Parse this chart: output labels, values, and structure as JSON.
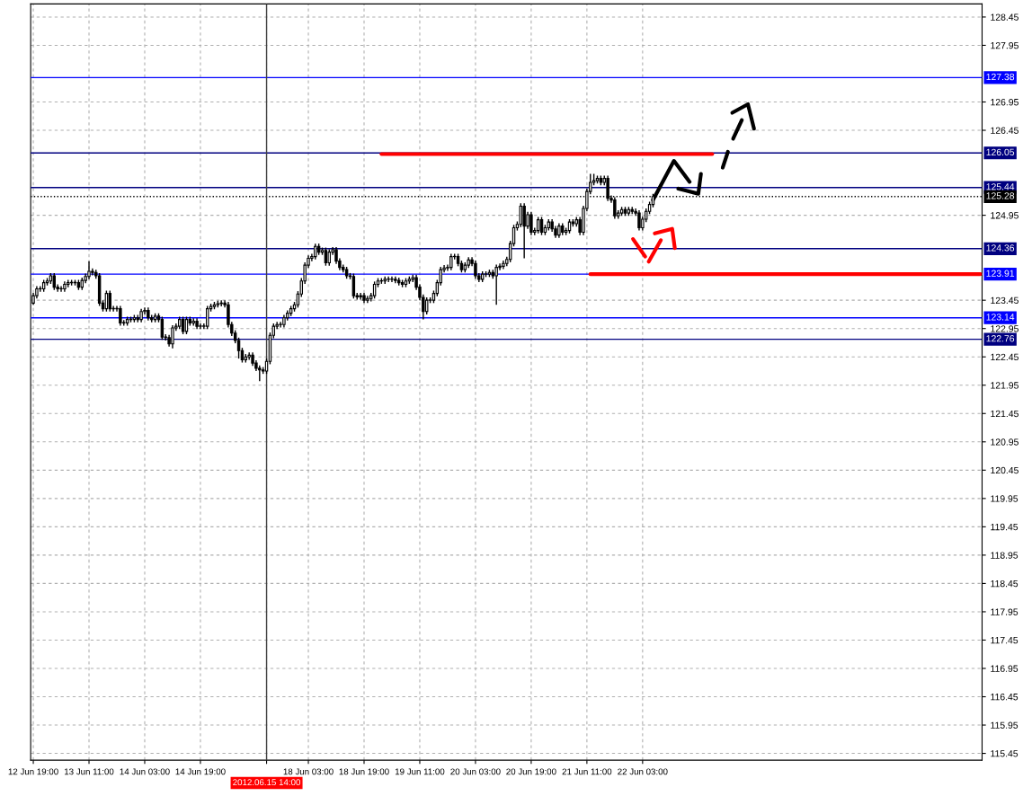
{
  "chart_data": {
    "type": "candlestick",
    "categories": [
      "12 Jun 19:00",
      null,
      null,
      null,
      null,
      null,
      null,
      null,
      null,
      null,
      null,
      null,
      null,
      null,
      null,
      null,
      "13 Jun 11:00",
      null,
      null,
      null,
      null,
      null,
      null,
      null,
      null,
      null,
      null,
      null,
      null,
      null,
      null,
      null,
      "14 Jun 03:00",
      null,
      null,
      null,
      null,
      null,
      null,
      null,
      null,
      null,
      null,
      null,
      null,
      null,
      null,
      null,
      "14 Jun 19:00",
      null,
      null,
      null,
      null,
      null,
      null,
      null,
      null,
      null,
      null,
      null,
      null,
      null,
      null,
      null,
      null,
      null,
      null,
      "2012.06.15 14:00",
      null,
      null,
      null,
      null,
      null,
      null,
      null,
      null,
      null,
      null,
      null,
      "18 Jun 03:00",
      null,
      null,
      null,
      null,
      null,
      null,
      null,
      null,
      null,
      null,
      null,
      null,
      null,
      null,
      null,
      "18 Jun 19:00",
      null,
      null,
      null,
      null,
      null,
      null,
      null,
      null,
      null,
      null,
      null,
      null,
      null,
      null,
      null,
      "19 Jun 11:00",
      null,
      null,
      null,
      null,
      null,
      null,
      null,
      null,
      null,
      null,
      null,
      null,
      null,
      null,
      null,
      "20 Jun 03:00",
      null,
      null,
      null,
      null,
      null,
      null,
      null,
      null,
      null,
      null,
      null,
      null,
      null,
      null,
      null,
      "20 Jun 19:00",
      null,
      null,
      null,
      null,
      null,
      null,
      null,
      null,
      null,
      null,
      null,
      null,
      null,
      null,
      null,
      "21 Jun 11:00",
      null,
      null,
      null,
      null,
      null,
      null,
      null,
      null,
      null,
      null,
      null,
      null,
      null,
      null,
      null,
      "22 Jun 03:00",
      null,
      null,
      null,
      null,
      null,
      null,
      null,
      null,
      null,
      null,
      null,
      null,
      null,
      null,
      null,
      null,
      null,
      null,
      null,
      null,
      null,
      null,
      null,
      null,
      null,
      null,
      null,
      null,
      null,
      null,
      null,
      null,
      null,
      null,
      null,
      null,
      null,
      null,
      null,
      null,
      null,
      null,
      null,
      null,
      null,
      null,
      null,
      null,
      null,
      null,
      null,
      null,
      null,
      null,
      null,
      null,
      null,
      null,
      null,
      null,
      null,
      null,
      null,
      null,
      null,
      null,
      null,
      null,
      null,
      null,
      null,
      null,
      null,
      null,
      null,
      null,
      null,
      null,
      null,
      null,
      null,
      null,
      null,
      null,
      null,
      null,
      null,
      null,
      null,
      null,
      null,
      null,
      null,
      null,
      null,
      null,
      null
    ],
    "ohlc": [
      [
        123.4,
        123.58,
        123.37,
        123.53
      ],
      [
        123.53,
        123.7,
        123.48,
        123.65
      ],
      [
        123.65,
        123.7,
        123.6,
        123.65
      ],
      [
        123.65,
        123.81,
        123.6,
        123.76
      ],
      [
        123.76,
        123.84,
        123.71,
        123.79
      ],
      [
        123.79,
        123.93,
        123.74,
        123.88
      ],
      [
        123.88,
        123.93,
        123.63,
        123.68
      ],
      [
        123.68,
        123.73,
        123.6,
        123.65
      ],
      [
        123.65,
        123.7,
        123.6,
        123.65
      ],
      [
        123.65,
        123.78,
        123.6,
        123.73
      ],
      [
        123.73,
        123.81,
        123.68,
        123.76
      ],
      [
        123.76,
        123.81,
        123.71,
        123.76
      ],
      [
        123.76,
        123.81,
        123.71,
        123.76
      ],
      [
        123.76,
        123.81,
        123.63,
        123.68
      ],
      [
        123.68,
        123.85,
        123.63,
        123.8
      ],
      [
        123.8,
        123.92,
        123.75,
        123.87
      ],
      [
        123.87,
        124.14,
        123.82,
        123.96
      ],
      [
        123.96,
        124.01,
        123.89,
        123.94
      ],
      [
        123.94,
        123.99,
        123.83,
        123.88
      ],
      [
        123.88,
        123.93,
        123.35,
        123.4
      ],
      [
        123.4,
        123.45,
        123.25,
        123.3
      ],
      [
        123.3,
        123.62,
        123.25,
        123.57
      ],
      [
        123.57,
        123.62,
        123.25,
        123.3
      ],
      [
        123.3,
        123.35,
        123.25,
        123.3
      ],
      [
        123.3,
        123.35,
        123.25,
        123.3
      ],
      [
        123.3,
        123.35,
        123.0,
        123.05
      ],
      [
        123.05,
        123.1,
        123.0,
        123.05
      ],
      [
        123.05,
        123.16,
        123.0,
        123.11
      ],
      [
        123.11,
        123.16,
        123.06,
        123.11
      ],
      [
        123.11,
        123.19,
        123.06,
        123.14
      ],
      [
        123.14,
        123.19,
        123.06,
        123.11
      ],
      [
        123.11,
        123.3,
        123.06,
        123.25
      ],
      [
        123.25,
        123.32,
        123.2,
        123.27
      ],
      [
        123.27,
        123.32,
        123.09,
        123.14
      ],
      [
        123.14,
        123.19,
        123.06,
        123.11
      ],
      [
        123.11,
        123.22,
        123.06,
        123.17
      ],
      [
        123.17,
        123.22,
        123.06,
        123.11
      ],
      [
        123.11,
        123.16,
        122.75,
        122.8
      ],
      [
        122.8,
        122.85,
        122.74,
        122.79
      ],
      [
        122.79,
        122.84,
        122.63,
        122.68
      ],
      [
        122.68,
        123.01,
        122.6,
        122.96
      ],
      [
        122.96,
        123.04,
        122.91,
        122.99
      ],
      [
        122.99,
        123.16,
        122.94,
        123.11
      ],
      [
        123.11,
        123.16,
        122.85,
        122.9
      ],
      [
        122.9,
        123.16,
        122.85,
        123.11
      ],
      [
        123.11,
        123.16,
        123.0,
        123.05
      ],
      [
        123.05,
        123.13,
        123.0,
        123.08
      ],
      [
        123.08,
        123.13,
        122.94,
        122.99
      ],
      [
        122.99,
        123.04,
        122.94,
        122.99
      ],
      [
        122.99,
        123.04,
        122.94,
        122.99
      ],
      [
        122.99,
        123.35,
        122.94,
        123.3
      ],
      [
        123.3,
        123.39,
        123.25,
        123.34
      ],
      [
        123.34,
        123.42,
        123.29,
        123.37
      ],
      [
        123.37,
        123.44,
        123.32,
        123.39
      ],
      [
        123.39,
        123.45,
        123.34,
        123.4
      ],
      [
        123.4,
        123.45,
        123.32,
        123.37
      ],
      [
        123.37,
        123.42,
        122.97,
        123.02
      ],
      [
        123.02,
        123.07,
        122.82,
        122.87
      ],
      [
        122.87,
        122.92,
        122.69,
        122.74
      ],
      [
        122.74,
        122.79,
        122.42,
        122.56
      ],
      [
        122.56,
        122.61,
        122.35,
        122.4
      ],
      [
        122.4,
        122.5,
        122.35,
        122.45
      ],
      [
        122.45,
        122.53,
        122.4,
        122.48
      ],
      [
        122.48,
        122.53,
        122.29,
        122.34
      ],
      [
        122.34,
        122.39,
        122.2,
        122.25
      ],
      [
        122.25,
        122.3,
        122.02,
        122.22
      ],
      [
        122.22,
        122.27,
        122.15,
        122.2
      ],
      [
        122.2,
        122.42,
        122.15,
        122.37
      ],
      [
        122.37,
        122.88,
        122.32,
        122.83
      ],
      [
        122.83,
        123.04,
        122.78,
        122.99
      ],
      [
        122.99,
        123.07,
        122.94,
        123.02
      ],
      [
        123.02,
        123.07,
        122.97,
        123.02
      ],
      [
        123.02,
        123.19,
        122.97,
        123.14
      ],
      [
        123.14,
        123.27,
        123.09,
        123.22
      ],
      [
        123.22,
        123.35,
        123.17,
        123.3
      ],
      [
        123.3,
        123.42,
        123.25,
        123.37
      ],
      [
        123.37,
        123.61,
        123.32,
        123.56
      ],
      [
        123.56,
        123.84,
        123.51,
        123.79
      ],
      [
        123.79,
        124.12,
        123.74,
        124.07
      ],
      [
        124.07,
        124.24,
        124.02,
        124.19
      ],
      [
        124.19,
        124.27,
        124.14,
        124.22
      ],
      [
        124.22,
        124.45,
        124.17,
        124.4
      ],
      [
        124.4,
        124.45,
        124.25,
        124.3
      ],
      [
        124.3,
        124.38,
        124.25,
        124.33
      ],
      [
        124.33,
        124.38,
        124.06,
        124.11
      ],
      [
        124.11,
        124.35,
        124.06,
        124.3
      ],
      [
        124.3,
        124.39,
        124.25,
        124.34
      ],
      [
        124.34,
        124.39,
        124.09,
        124.14
      ],
      [
        124.14,
        124.19,
        123.98,
        124.03
      ],
      [
        124.03,
        124.08,
        123.94,
        123.99
      ],
      [
        123.99,
        124.04,
        123.83,
        123.88
      ],
      [
        123.88,
        123.93,
        123.82,
        123.87
      ],
      [
        123.87,
        123.92,
        123.48,
        123.53
      ],
      [
        123.53,
        123.58,
        123.46,
        123.51
      ],
      [
        123.51,
        123.58,
        123.46,
        123.53
      ],
      [
        123.53,
        123.58,
        123.4,
        123.45
      ],
      [
        123.45,
        123.53,
        123.4,
        123.48
      ],
      [
        123.48,
        123.58,
        123.43,
        123.53
      ],
      [
        123.53,
        123.78,
        123.48,
        123.73
      ],
      [
        123.73,
        123.84,
        123.68,
        123.79
      ],
      [
        123.79,
        123.84,
        123.74,
        123.79
      ],
      [
        123.79,
        123.87,
        123.74,
        123.82
      ],
      [
        123.82,
        123.87,
        123.77,
        123.82
      ],
      [
        123.82,
        123.87,
        123.77,
        123.82
      ],
      [
        123.82,
        123.87,
        123.75,
        123.8
      ],
      [
        123.8,
        123.85,
        123.71,
        123.76
      ],
      [
        123.76,
        123.81,
        123.68,
        123.73
      ],
      [
        123.73,
        123.84,
        123.68,
        123.79
      ],
      [
        123.79,
        123.87,
        123.74,
        123.82
      ],
      [
        123.82,
        123.9,
        123.77,
        123.85
      ],
      [
        123.85,
        123.9,
        123.63,
        123.68
      ],
      [
        123.68,
        123.73,
        123.45,
        123.5
      ],
      [
        123.5,
        123.55,
        123.11,
        123.25
      ],
      [
        123.25,
        123.5,
        123.2,
        123.45
      ],
      [
        123.45,
        123.5,
        123.4,
        123.45
      ],
      [
        123.45,
        123.62,
        123.4,
        123.57
      ],
      [
        123.57,
        123.81,
        123.52,
        123.76
      ],
      [
        123.76,
        124.04,
        123.71,
        123.99
      ],
      [
        123.99,
        124.07,
        123.94,
        124.02
      ],
      [
        124.02,
        124.08,
        123.97,
        124.03
      ],
      [
        124.03,
        124.27,
        123.98,
        124.22
      ],
      [
        124.22,
        124.27,
        124.17,
        124.22
      ],
      [
        124.22,
        124.27,
        124.05,
        124.1
      ],
      [
        124.1,
        124.15,
        123.94,
        123.99
      ],
      [
        123.99,
        124.12,
        123.94,
        124.07
      ],
      [
        124.07,
        124.21,
        124.02,
        124.16
      ],
      [
        124.16,
        124.21,
        124.05,
        124.1
      ],
      [
        124.1,
        124.15,
        123.83,
        123.88
      ],
      [
        123.88,
        123.93,
        123.77,
        123.82
      ],
      [
        123.82,
        123.96,
        123.77,
        123.91
      ],
      [
        123.91,
        123.96,
        123.86,
        123.91
      ],
      [
        123.91,
        123.99,
        123.86,
        123.94
      ],
      [
        123.94,
        123.99,
        123.83,
        123.88
      ],
      [
        123.88,
        124.08,
        123.37,
        124.03
      ],
      [
        124.03,
        124.1,
        123.98,
        124.05
      ],
      [
        124.05,
        124.15,
        124.0,
        124.1
      ],
      [
        124.1,
        124.22,
        124.05,
        124.17
      ],
      [
        124.17,
        124.5,
        124.12,
        124.45
      ],
      [
        124.45,
        124.78,
        124.4,
        124.73
      ],
      [
        124.73,
        124.84,
        124.68,
        124.79
      ],
      [
        124.79,
        125.16,
        124.74,
        125.11
      ],
      [
        125.11,
        125.16,
        124.19,
        124.76
      ],
      [
        124.76,
        125.01,
        124.71,
        124.96
      ],
      [
        124.96,
        125.01,
        124.6,
        124.65
      ],
      [
        124.65,
        124.73,
        124.6,
        124.68
      ],
      [
        124.68,
        124.92,
        124.63,
        124.87
      ],
      [
        124.87,
        124.92,
        124.6,
        124.65
      ],
      [
        124.65,
        124.78,
        124.6,
        124.73
      ],
      [
        124.73,
        124.88,
        124.68,
        124.83
      ],
      [
        124.83,
        124.88,
        124.66,
        124.71
      ],
      [
        124.71,
        124.76,
        124.55,
        124.6
      ],
      [
        124.6,
        124.81,
        124.55,
        124.76
      ],
      [
        124.76,
        124.81,
        124.6,
        124.65
      ],
      [
        124.65,
        124.73,
        124.6,
        124.68
      ],
      [
        124.68,
        124.88,
        124.63,
        124.83
      ],
      [
        124.83,
        124.88,
        124.75,
        124.8
      ],
      [
        124.8,
        124.92,
        124.75,
        124.87
      ],
      [
        124.87,
        124.92,
        124.6,
        124.65
      ],
      [
        124.65,
        125.12,
        124.6,
        125.07
      ],
      [
        125.07,
        125.42,
        125.02,
        125.37
      ],
      [
        125.37,
        125.68,
        125.32,
        125.53
      ],
      [
        125.53,
        125.68,
        125.48,
        125.56
      ],
      [
        125.56,
        125.65,
        125.51,
        125.6
      ],
      [
        125.6,
        125.65,
        125.48,
        125.53
      ],
      [
        125.53,
        125.65,
        125.48,
        125.6
      ],
      [
        125.6,
        125.65,
        125.2,
        125.25
      ],
      [
        125.25,
        125.3,
        125.17,
        125.22
      ],
      [
        125.22,
        125.27,
        124.89,
        124.94
      ],
      [
        124.94,
        125.04,
        124.89,
        124.99
      ],
      [
        124.99,
        125.1,
        124.94,
        125.05
      ],
      [
        125.05,
        125.1,
        124.94,
        124.99
      ],
      [
        124.99,
        125.1,
        124.94,
        125.05
      ],
      [
        125.05,
        125.1,
        124.97,
        125.02
      ],
      [
        125.02,
        125.07,
        124.94,
        124.99
      ],
      [
        124.99,
        125.04,
        124.68,
        124.73
      ],
      [
        124.73,
        124.93,
        124.68,
        124.88
      ],
      [
        124.88,
        125.07,
        124.83,
        125.02
      ],
      [
        125.02,
        125.19,
        124.97,
        125.14
      ],
      [
        125.14,
        125.33,
        125.09,
        125.28
      ],
      null,
      null,
      null,
      null,
      null,
      null,
      null,
      null,
      null,
      null,
      null,
      null,
      null,
      null,
      null,
      null,
      null,
      null,
      null,
      null,
      null,
      null,
      null,
      null,
      null,
      null,
      null,
      null,
      null,
      null,
      null,
      null,
      null,
      null,
      null,
      null,
      null,
      null,
      null,
      null,
      null,
      null,
      null,
      null,
      null,
      null,
      null,
      null,
      null,
      null,
      null,
      null,
      null,
      null,
      null,
      null,
      null,
      null,
      null,
      null,
      null,
      null,
      null,
      null,
      null,
      null,
      null,
      null,
      null,
      null,
      null,
      null,
      null,
      null,
      null,
      null,
      null,
      null,
      null,
      null,
      null,
      null,
      null,
      null,
      null,
      null,
      null,
      null,
      null,
      null,
      null,
      null,
      null,
      null
    ],
    "series": [
      {
        "type": "line",
        "color": "#ff0000",
        "values": [
          null,
          null,
          null,
          null,
          null,
          null,
          null,
          null,
          null,
          null,
          null,
          null,
          null,
          null,
          null,
          null,
          null,
          null,
          null,
          null,
          null,
          null,
          null,
          null,
          null,
          null,
          null,
          null,
          null,
          null,
          null,
          null,
          null,
          null,
          null,
          null,
          null,
          null,
          null,
          null,
          null,
          null,
          null,
          null,
          null,
          null,
          null,
          null,
          null,
          null,
          null,
          null,
          null,
          null,
          null,
          null,
          null,
          null,
          null,
          null,
          null,
          null,
          null,
          null,
          null,
          null,
          null,
          null,
          null,
          null,
          null,
          null,
          null,
          null,
          null,
          null,
          null,
          null,
          null,
          null,
          null,
          null,
          null,
          null,
          null,
          null,
          null,
          null,
          null,
          null,
          null,
          null,
          null,
          null,
          null,
          null,
          null,
          null,
          null,
          null,
          126.03,
          null,
          null,
          null,
          null,
          null,
          null,
          null,
          null,
          null,
          null,
          null,
          null,
          null,
          null,
          null,
          null,
          null,
          null,
          null,
          null,
          null,
          null,
          null,
          null,
          null,
          null,
          null,
          null,
          null,
          null,
          null,
          null,
          null,
          null,
          null,
          null,
          null,
          null,
          null,
          null,
          null,
          null,
          null,
          null,
          null,
          null,
          null,
          null,
          null,
          null,
          null,
          null,
          null,
          null,
          null,
          null,
          null,
          null,
          null,
          null,
          null,
          null,
          null,
          null,
          null,
          null,
          null,
          null,
          null,
          null,
          null,
          null,
          null,
          null,
          null,
          null,
          null,
          null,
          null,
          null,
          null,
          null,
          null,
          null,
          null,
          null,
          null,
          null,
          null,
          null,
          null,
          null,
          null,
          null,
          126.03,
          null,
          null,
          null,
          null,
          null,
          null,
          null,
          null,
          null,
          null,
          null,
          null,
          null,
          null,
          null,
          null,
          null,
          null,
          null,
          null,
          null,
          null,
          null,
          null,
          null,
          null,
          null,
          null,
          null,
          null,
          null,
          null,
          null,
          null,
          null,
          null,
          null,
          null,
          null,
          null,
          null,
          null,
          null,
          null,
          null,
          null,
          null,
          null,
          null,
          null,
          null,
          null,
          null,
          null,
          null,
          null,
          null,
          null,
          null,
          null,
          null,
          null,
          null,
          null,
          null,
          null,
          null,
          null,
          null,
          null,
          null,
          null,
          null,
          null,
          null,
          null,
          null
        ]
      },
      {
        "type": "line",
        "color": "#ff0000",
        "values": [
          null,
          null,
          null,
          null,
          null,
          null,
          null,
          null,
          null,
          null,
          null,
          null,
          null,
          null,
          null,
          null,
          null,
          null,
          null,
          null,
          null,
          null,
          null,
          null,
          null,
          null,
          null,
          null,
          null,
          null,
          null,
          null,
          null,
          null,
          null,
          null,
          null,
          null,
          null,
          null,
          null,
          null,
          null,
          null,
          null,
          null,
          null,
          null,
          null,
          null,
          null,
          null,
          null,
          null,
          null,
          null,
          null,
          null,
          null,
          null,
          null,
          null,
          null,
          null,
          null,
          null,
          null,
          null,
          null,
          null,
          null,
          null,
          null,
          null,
          null,
          null,
          null,
          null,
          null,
          null,
          null,
          null,
          null,
          null,
          null,
          null,
          null,
          null,
          null,
          null,
          null,
          null,
          null,
          null,
          null,
          null,
          null,
          null,
          null,
          null,
          null,
          null,
          null,
          null,
          null,
          null,
          null,
          null,
          null,
          null,
          null,
          null,
          null,
          null,
          null,
          null,
          null,
          null,
          null,
          null,
          null,
          null,
          null,
          null,
          null,
          null,
          null,
          null,
          null,
          null,
          null,
          null,
          null,
          null,
          null,
          null,
          null,
          null,
          null,
          null,
          null,
          null,
          null,
          null,
          null,
          null,
          null,
          null,
          null,
          null,
          null,
          null,
          null,
          null,
          null,
          null,
          null,
          null,
          null,
          null,
          123.91,
          null,
          null,
          null,
          null,
          null,
          null,
          null,
          null,
          null,
          null,
          null,
          null,
          null,
          null,
          null,
          null,
          null,
          null,
          null,
          null,
          null,
          null,
          null,
          null,
          null,
          null,
          null,
          null,
          null,
          null,
          null,
          null,
          null,
          null,
          null,
          null,
          null,
          null,
          null,
          null,
          null,
          null,
          null,
          null,
          null,
          null,
          null,
          null,
          null,
          null,
          null,
          null,
          null,
          null,
          null,
          null,
          null,
          null,
          null,
          null,
          null,
          null,
          null,
          null,
          null,
          null,
          null,
          null,
          null,
          null,
          null,
          null,
          null,
          null,
          null,
          null,
          null,
          null,
          null,
          null,
          null,
          null,
          null,
          null,
          null,
          null,
          null,
          null,
          null,
          null,
          null,
          null,
          null,
          null,
          null,
          null,
          null,
          null,
          null,
          null,
          null,
          null,
          null,
          null,
          null,
          null,
          null,
          null,
          null,
          null,
          null,
          123.91
        ]
      }
    ],
    "ref_lines": [
      {
        "axis": "y",
        "value": 127.38,
        "label": "127.38",
        "color": "#0000ff"
      },
      {
        "axis": "y",
        "value": 126.05,
        "label": "126.05",
        "color": "#000080"
      },
      {
        "axis": "y",
        "value": 125.44,
        "label": "125.44",
        "color": "#000080"
      },
      {
        "axis": "y",
        "value": 125.28,
        "label": "125.28",
        "color": "#000000",
        "line_style": "dotted"
      },
      {
        "axis": "y",
        "value": 124.36,
        "label": "124.36",
        "color": "#000080"
      },
      {
        "axis": "y",
        "value": 123.91,
        "label": "123.91",
        "color": "#0000ff"
      },
      {
        "axis": "y",
        "value": 123.14,
        "label": "123.14",
        "color": "#0000ff"
      },
      {
        "axis": "y",
        "value": 122.76,
        "label": "122.76",
        "color": "#000080"
      },
      {
        "axis": "x",
        "value": "2012.06.15 14:00",
        "color": "#404040"
      }
    ],
    "ylim": [
      115.33,
      128.68
    ],
    "yticks": [
      115.45,
      115.95,
      116.45,
      116.95,
      117.45,
      117.95,
      118.45,
      118.95,
      119.45,
      119.95,
      120.45,
      120.95,
      121.45,
      121.95,
      122.45,
      122.95,
      123.45,
      124.95,
      126.45,
      126.95,
      127.95,
      128.45
    ],
    "grid": true
  }
}
